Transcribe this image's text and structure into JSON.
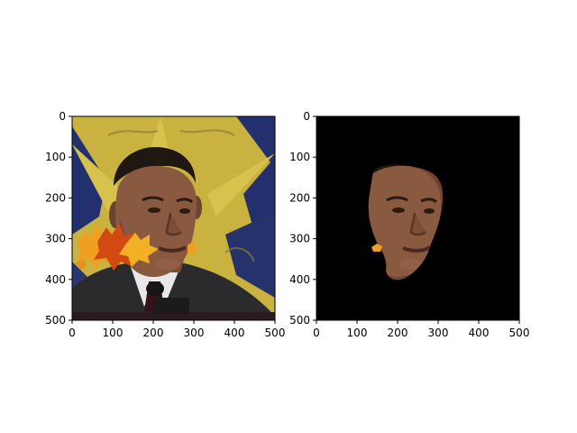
{
  "figure": {
    "background": "#ffffff",
    "panels": [
      {
        "id": "left",
        "content": "photo of a man in a suit and tie at a podium, in front of a yellow star and blue curtain backdrop, with autumn maple leaves overlaid near his chin",
        "x_ticks": [
          "0",
          "100",
          "200",
          "300",
          "400",
          "500"
        ],
        "y_ticks": [
          "0",
          "100",
          "200",
          "300",
          "400",
          "500"
        ]
      },
      {
        "id": "right",
        "content": "segmented face region of the same man on a black background, with a small orange leaf fragment to the left",
        "mask_background": "#000000",
        "x_ticks": [
          "0",
          "100",
          "200",
          "300",
          "400",
          "500"
        ],
        "y_ticks": [
          "0",
          "100",
          "200",
          "300",
          "400",
          "500"
        ]
      }
    ],
    "colors": {
      "backdrop_yellow": "#c9b23f",
      "curtain_blue": "#23306e",
      "suit_dark": "#2b2b2e",
      "skin": "#8a5a40",
      "leaf_orange": "#f0a020",
      "leaf_red": "#d24a12"
    }
  }
}
